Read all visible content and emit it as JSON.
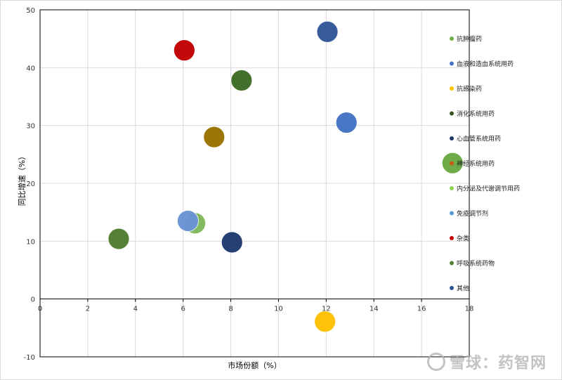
{
  "chart_data": {
    "type": "scatter",
    "title": "",
    "xlabel": "市场份额（%）",
    "ylabel": "同比增速（%）",
    "xlim": [
      0,
      18
    ],
    "ylim": [
      -10,
      50
    ],
    "x_ticks": [
      0,
      2,
      4,
      6,
      8,
      10,
      12,
      14,
      16,
      18
    ],
    "y_ticks": [
      -10,
      0,
      10,
      20,
      30,
      40,
      50
    ],
    "grid": true,
    "legend_position": "right",
    "series": [
      {
        "name": "抗肿瘤药",
        "color": "#6aa842",
        "x": 17.3,
        "y": 23.5
      },
      {
        "name": "血液和造血系统用药",
        "color": "#4472c4",
        "x": 12.85,
        "y": 30.5
      },
      {
        "name": "抗感染药",
        "color": "#ffc000",
        "x": 11.95,
        "y": -3.9
      },
      {
        "name": "消化系统用药",
        "color": "#3d6b24",
        "x": 8.45,
        "y": 37.8
      },
      {
        "name": "心血管系统用药",
        "color": "#1f3a70",
        "x": 8.05,
        "y": 9.8
      },
      {
        "name": "神经系统用药",
        "color": "#997300",
        "x": 7.3,
        "y": 28.0
      },
      {
        "name": "内分泌及代谢调节用药",
        "color": "#7fb85a",
        "x": 6.5,
        "y": 13.1
      },
      {
        "name": "免疫调节剂",
        "color": "#6a94d4",
        "x": 6.2,
        "y": 13.5
      },
      {
        "name": "杂类",
        "color": "#c00000",
        "x": 6.05,
        "y": 43.0
      },
      {
        "name": "呼吸系统药物",
        "color": "#4e7d2f",
        "x": 3.3,
        "y": 10.4
      },
      {
        "name": "其他",
        "color": "#2f5597",
        "x": 12.05,
        "y": 46.2
      }
    ],
    "legend_marker_colors": [
      "#70ad47",
      "#4472c4",
      "#ffc000",
      "#375623",
      "#203864",
      "#c55a11",
      "#92d050",
      "#5b9bd5",
      "#c00000",
      "#538135",
      "#2f5597"
    ]
  },
  "watermark": "雪球：药智网"
}
